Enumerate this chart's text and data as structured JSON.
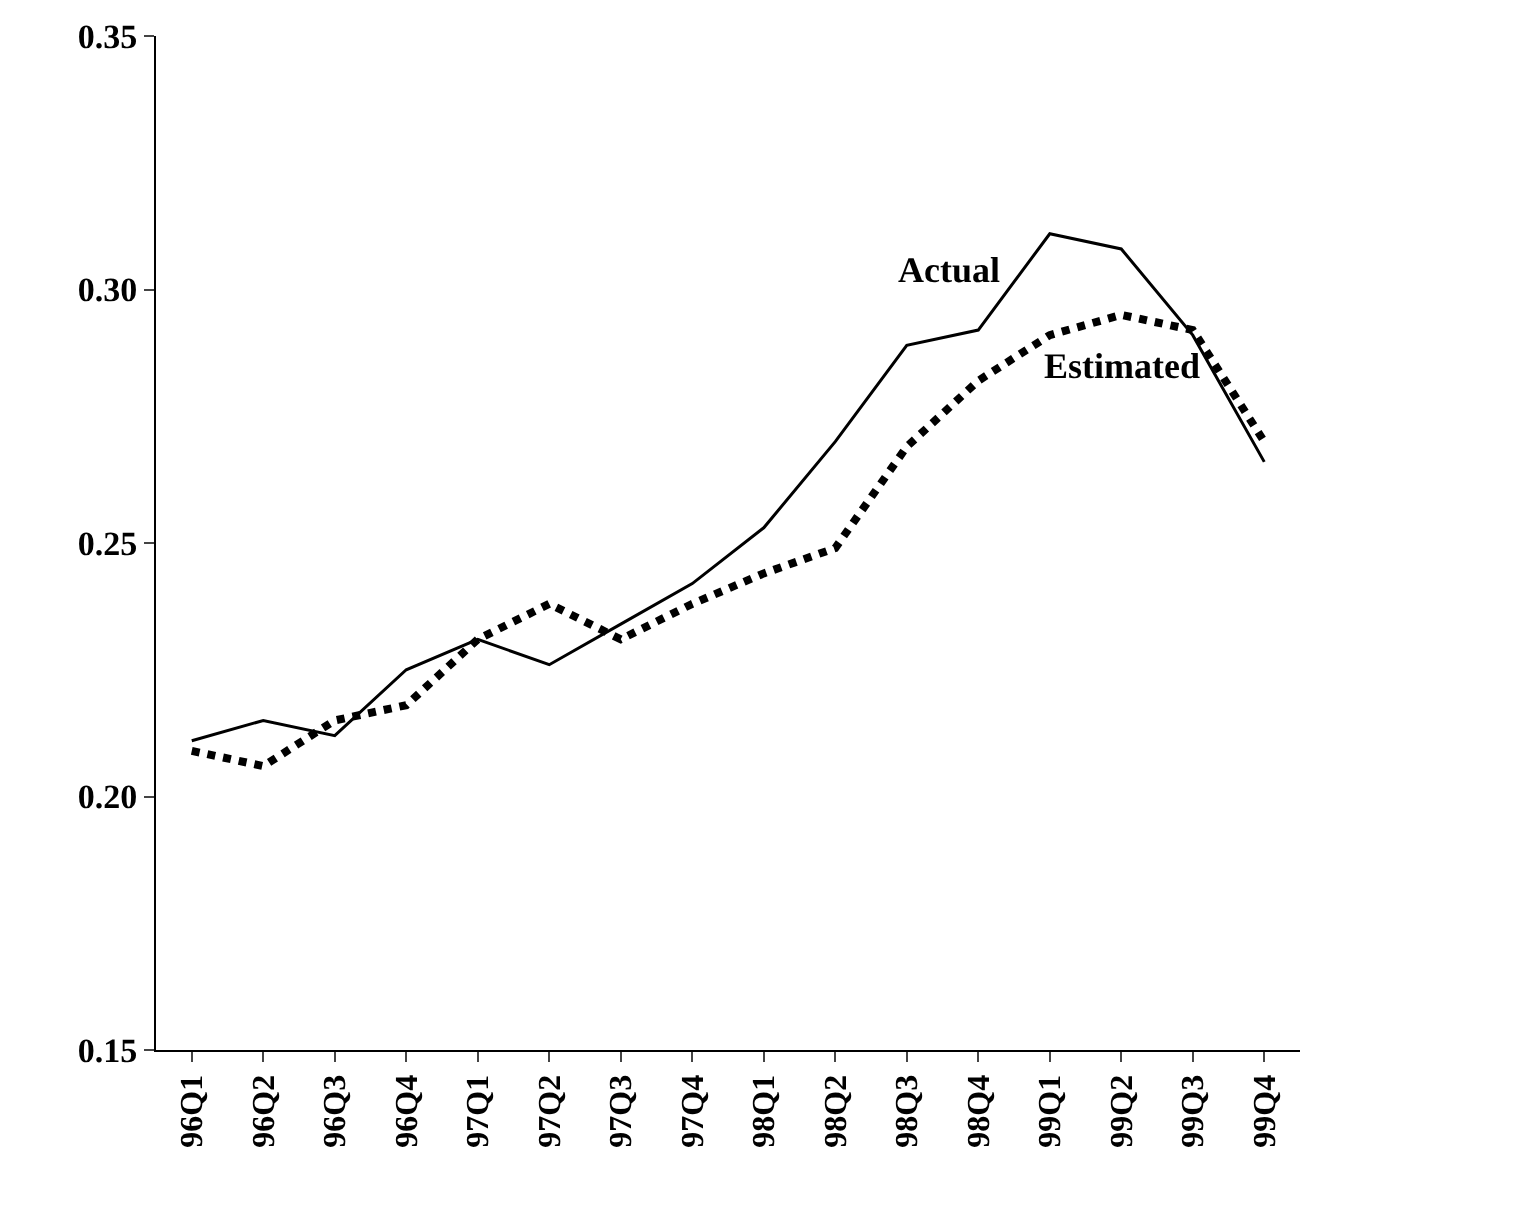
{
  "chart_data": {
    "type": "line",
    "categories": [
      "96Q1",
      "96Q2",
      "96Q3",
      "96Q4",
      "97Q1",
      "97Q2",
      "97Q3",
      "97Q4",
      "98Q1",
      "98Q2",
      "98Q3",
      "98Q4",
      "99Q1",
      "99Q2",
      "99Q3",
      "99Q4"
    ],
    "series": [
      {
        "name": "Actual",
        "color": "#000000",
        "line_style": "solid",
        "values": [
          0.211,
          0.215,
          0.212,
          0.225,
          0.231,
          0.226,
          0.234,
          0.242,
          0.253,
          0.27,
          0.289,
          0.292,
          0.311,
          0.308,
          0.291,
          0.266
        ]
      },
      {
        "name": "Estimated",
        "color": "#000000",
        "line_style": "dotted",
        "values": [
          0.209,
          0.206,
          0.215,
          0.218,
          0.231,
          0.238,
          0.231,
          0.238,
          0.244,
          0.249,
          0.269,
          0.282,
          0.291,
          0.295,
          0.292,
          0.27
        ]
      }
    ],
    "ylim": [
      0.15,
      0.35
    ],
    "yticks": [
      {
        "value": 0.15,
        "label": "0.15"
      },
      {
        "value": 0.2,
        "label": "0.20"
      },
      {
        "value": 0.25,
        "label": "0.25"
      },
      {
        "value": 0.3,
        "label": "0.30"
      },
      {
        "value": 0.35,
        "label": "0.35"
      }
    ],
    "grid": false,
    "legend": false,
    "marker": "none"
  }
}
